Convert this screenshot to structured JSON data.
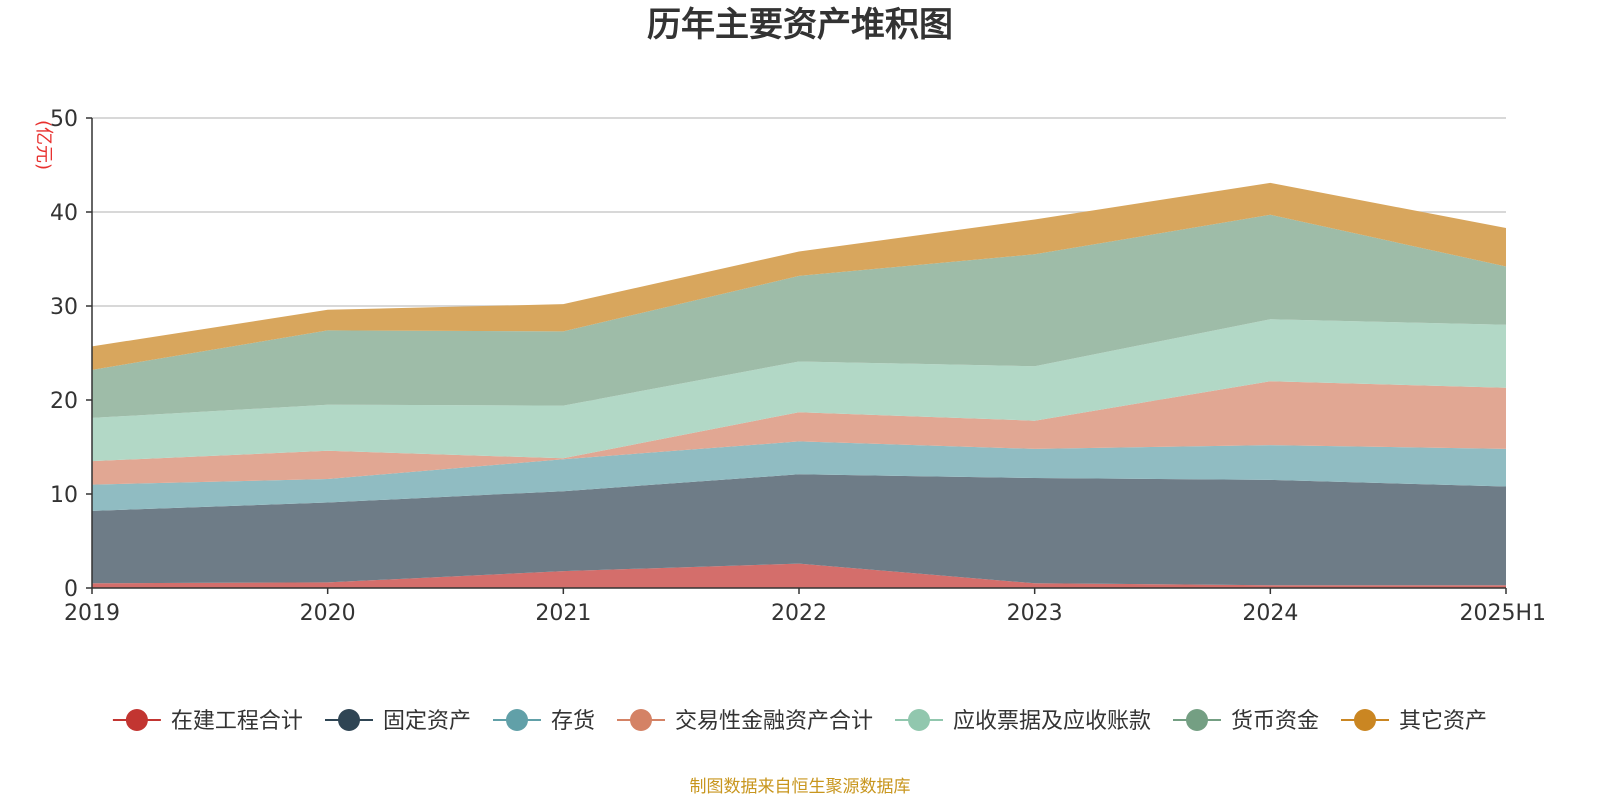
{
  "chart_data": {
    "type": "area",
    "stacked": true,
    "title": "历年主要资产堆积图",
    "unit_label": "(亿元)",
    "x": [
      "2019",
      "2020",
      "2021",
      "2022",
      "2023",
      "2024",
      "2025H1"
    ],
    "ylim": [
      0,
      50
    ],
    "yticks": [
      0,
      10,
      20,
      30,
      40,
      50
    ],
    "grid": true,
    "legend_position": "bottom",
    "series": [
      {
        "name": "在建工程合计",
        "color": "#c23531",
        "fill": "#d46e6b",
        "values": [
          0.5,
          0.6,
          1.8,
          2.6,
          0.5,
          0.3,
          0.3
        ]
      },
      {
        "name": "固定资产",
        "color": "#2f4554",
        "fill": "#6e7c87",
        "values": [
          7.7,
          8.5,
          8.5,
          9.5,
          11.2,
          11.2,
          10.5
        ]
      },
      {
        "name": "存货",
        "color": "#61a0a8",
        "fill": "#90bcc2",
        "values": [
          2.8,
          2.5,
          3.4,
          3.5,
          3.1,
          3.7,
          4.0
        ]
      },
      {
        "name": "交易性金融资产合计",
        "color": "#d48265",
        "fill": "#e1a793",
        "values": [
          2.5,
          3.0,
          0.1,
          3.1,
          3.0,
          6.8,
          6.5
        ]
      },
      {
        "name": "应收票据及应收账款",
        "color": "#91c7ae",
        "fill": "#b2d8c6",
        "values": [
          4.6,
          4.9,
          5.6,
          5.4,
          5.8,
          6.6,
          6.7
        ]
      },
      {
        "name": "货币资金",
        "color": "#749f83",
        "fill": "#9ebca8",
        "values": [
          5.1,
          7.9,
          7.9,
          9.1,
          11.9,
          11.1,
          6.2
        ]
      },
      {
        "name": "其它资产",
        "color": "#ca8622",
        "fill": "#d8a65d",
        "values": [
          2.5,
          2.2,
          2.9,
          2.6,
          3.7,
          3.4,
          4.1
        ]
      }
    ],
    "source_note": "制图数据来自恒生聚源数据库",
    "colors": {
      "unit": "#e8312f",
      "source": "#c8961e",
      "grid": "#cccccc",
      "axis": "#333333"
    }
  }
}
